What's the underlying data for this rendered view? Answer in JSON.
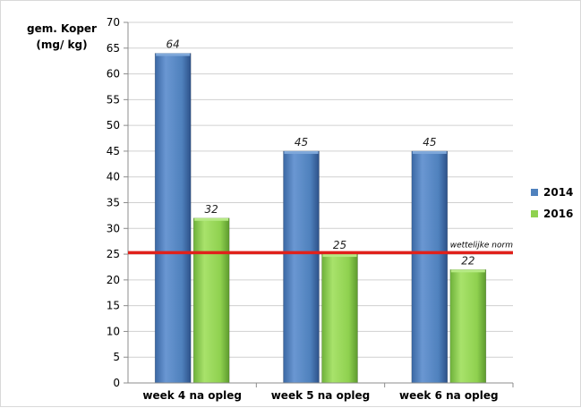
{
  "chart_data": {
    "type": "bar",
    "ylabel_lines": [
      "gem. Koper",
      "(mg/ kg)"
    ],
    "categories": [
      "week 4 na opleg",
      "week 5 na opleg",
      "week 6 na opleg"
    ],
    "series": [
      {
        "name": "2014",
        "values": [
          64,
          45,
          45
        ],
        "labels": [
          "64",
          "45",
          "45"
        ],
        "color": "#4f81bd"
      },
      {
        "name": "2016",
        "values": [
          32,
          25,
          22
        ],
        "labels": [
          "32",
          "25",
          "22"
        ],
        "color": "#8fd14f"
      }
    ],
    "yticks": [
      "0",
      "5",
      "10",
      "15",
      "20",
      "25",
      "30",
      "35",
      "40",
      "45",
      "50",
      "55",
      "60",
      "65",
      "70"
    ],
    "ylim": [
      0,
      70
    ],
    "grid": true,
    "legend": "right",
    "reference_line": {
      "value": 25.3,
      "label": "wettelijke norm",
      "color": "#e0211b"
    }
  }
}
